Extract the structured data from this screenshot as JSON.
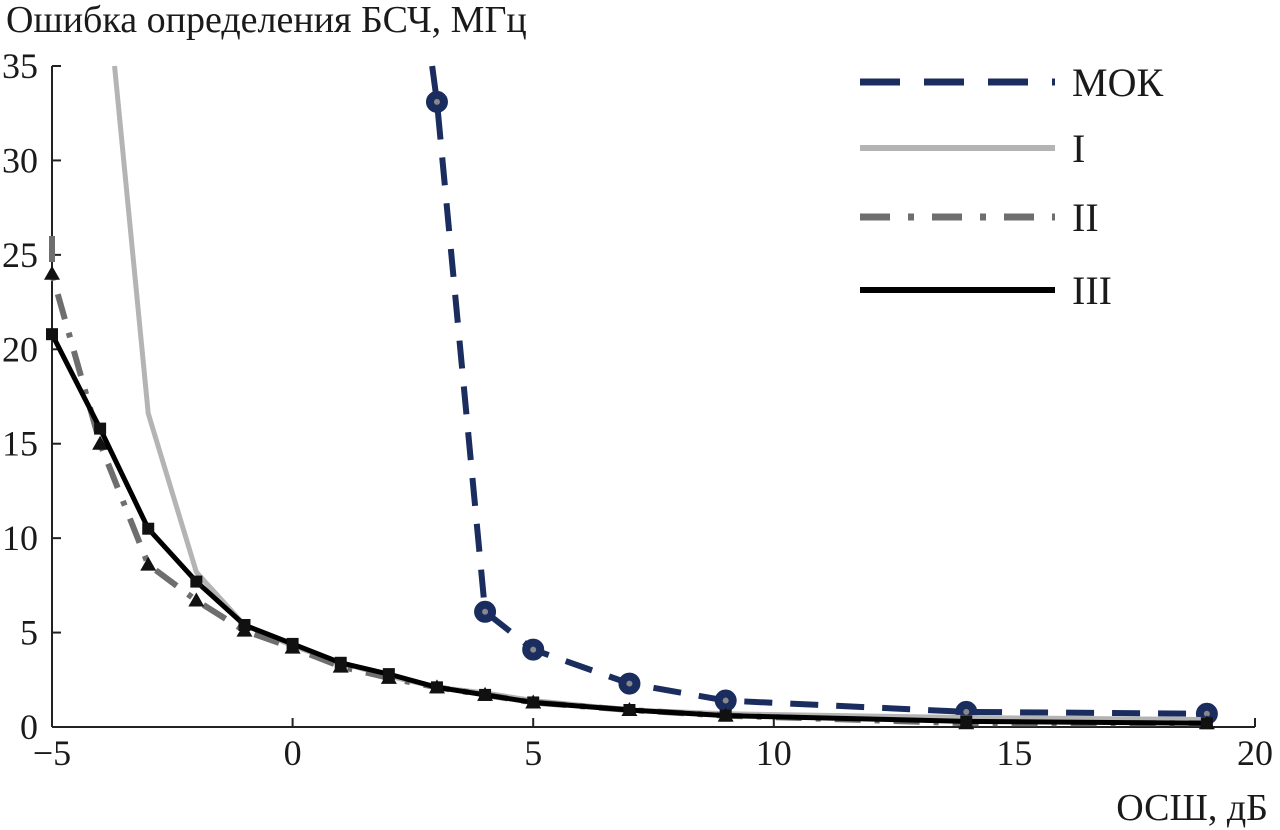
{
  "chart_data": {
    "type": "line",
    "title": "",
    "xlabel": "ОСШ, дБ",
    "ylabel": "Ошибка определения БСЧ, МГц",
    "xlim": [
      -5,
      20
    ],
    "ylim": [
      0,
      35
    ],
    "xticks": [
      -5,
      0,
      5,
      10,
      15,
      20
    ],
    "yticks": [
      0,
      5,
      10,
      15,
      20,
      25,
      30,
      35
    ],
    "grid": false,
    "legend_position": "top-right",
    "series": [
      {
        "name": "МОК",
        "color": "#1a2d5e",
        "style": "dashed",
        "marker": "circle",
        "x": [
          3,
          4,
          5,
          7,
          9,
          14,
          19
        ],
        "y": [
          33.1,
          6.1,
          4.1,
          2.3,
          1.4,
          0.8,
          0.7
        ],
        "lead_in": {
          "x": [
            2.9,
            3
          ],
          "y": [
            35,
            33.1
          ]
        }
      },
      {
        "name": "I",
        "color": "#b4b4b4",
        "style": "solid",
        "marker": "none",
        "x": [
          -3.7,
          -3,
          -2,
          -1,
          0,
          1,
          2,
          3,
          4,
          5,
          7,
          9,
          14,
          19
        ],
        "y": [
          35,
          16.6,
          8.2,
          5.4,
          4.3,
          3.4,
          2.7,
          2.1,
          1.8,
          1.4,
          0.9,
          0.7,
          0.5,
          0.4
        ]
      },
      {
        "name": "II",
        "color": "#6e6e6e",
        "style": "dashdot",
        "marker": "triangle",
        "x": [
          -5,
          -4,
          -3,
          -2,
          -1,
          0,
          1,
          2,
          3,
          4,
          5,
          7,
          9,
          14,
          19
        ],
        "y": [
          24,
          15,
          8.6,
          6.7,
          5.1,
          4.2,
          3.2,
          2.6,
          2.1,
          1.7,
          1.3,
          0.9,
          0.6,
          0.2,
          0.2
        ],
        "lead_in": {
          "x": [
            -5,
            -5
          ],
          "y": [
            26,
            24
          ]
        }
      },
      {
        "name": "III",
        "color": "#000000",
        "style": "solid",
        "marker": "square",
        "x": [
          -5,
          -4,
          -3,
          -2,
          -1,
          0,
          1,
          2,
          3,
          4,
          5,
          7,
          9,
          14,
          19
        ],
        "y": [
          20.8,
          15.8,
          10.5,
          7.7,
          5.4,
          4.4,
          3.4,
          2.8,
          2.1,
          1.7,
          1.3,
          0.9,
          0.6,
          0.3,
          0.2
        ]
      }
    ]
  }
}
